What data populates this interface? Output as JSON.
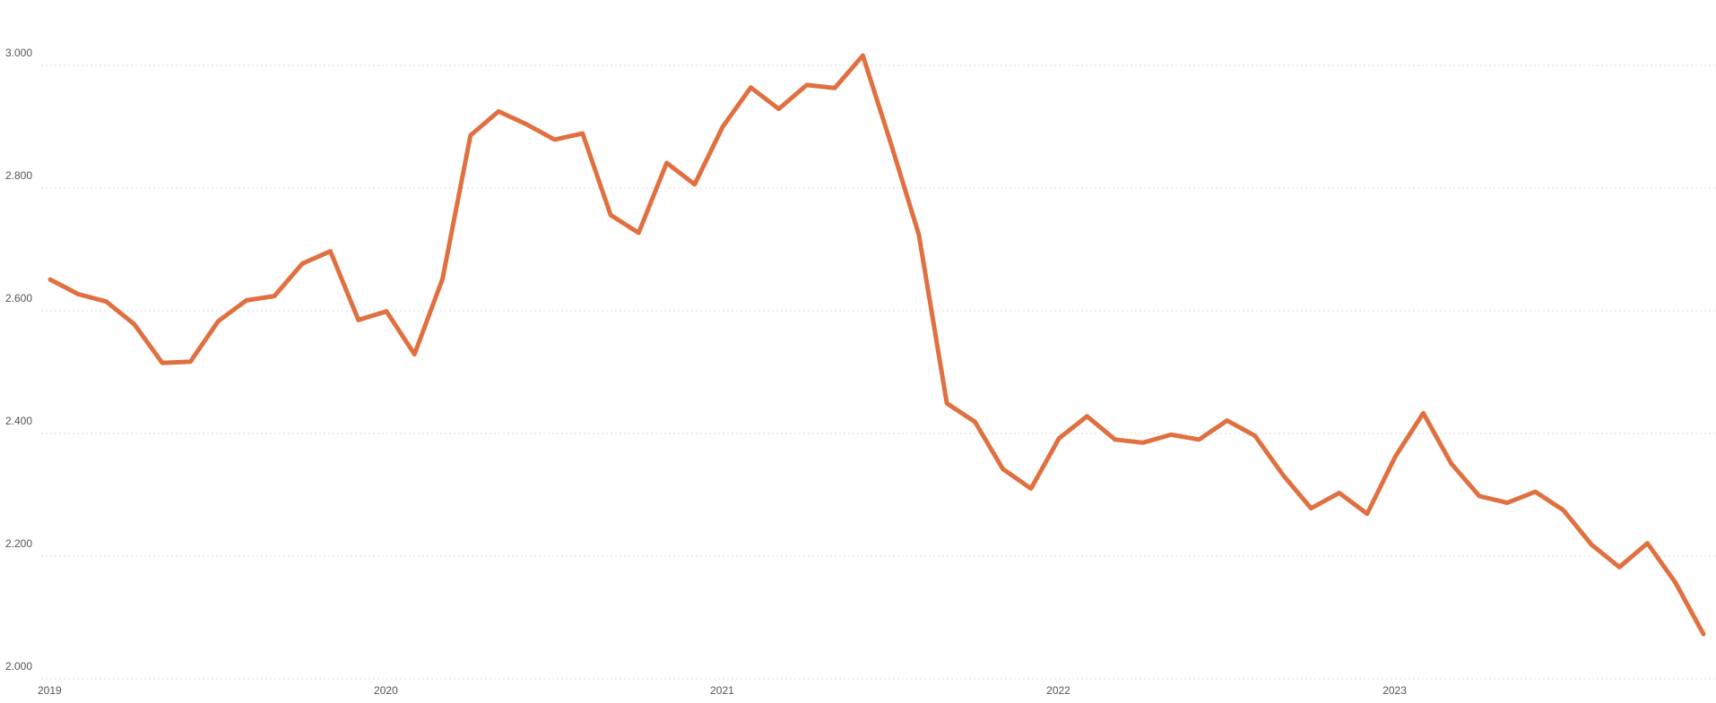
{
  "chart_data": {
    "type": "line",
    "categories": [
      "2019",
      null,
      null,
      null,
      null,
      null,
      null,
      null,
      null,
      null,
      null,
      null,
      "2020",
      null,
      null,
      null,
      null,
      null,
      null,
      null,
      null,
      null,
      null,
      null,
      "2021",
      null,
      null,
      null,
      null,
      null,
      null,
      null,
      null,
      null,
      null,
      null,
      "2022",
      null,
      null,
      null,
      null,
      null,
      null,
      null,
      null,
      null,
      null,
      null,
      "2023",
      null,
      null,
      null,
      null,
      null,
      null,
      null,
      null,
      null,
      null,
      null
    ],
    "values": [
      2651,
      2627,
      2615,
      2578,
      2515,
      2517,
      2583,
      2617,
      2624,
      2677,
      2697,
      2585,
      2599,
      2529,
      2652,
      2886,
      2925,
      2904,
      2879,
      2889,
      2756,
      2727,
      2841,
      2806,
      2900,
      2964,
      2929,
      2968,
      2963,
      3016,
      2873,
      2724,
      2449,
      2419,
      2342,
      2310,
      2392,
      2428,
      2390,
      2385,
      2398,
      2390,
      2421,
      2396,
      2332,
      2278,
      2303,
      2269,
      2362,
      2433,
      2351,
      2298,
      2287,
      2305,
      2275,
      2219,
      2182,
      2221,
      2157,
      2073
    ],
    "color": "#e07040",
    "ylim": [
      2000,
      3000
    ],
    "yticks": [
      {
        "value": 2000,
        "label": "2.000"
      },
      {
        "value": 2200,
        "label": "2.200"
      },
      {
        "value": 2400,
        "label": "2.400"
      },
      {
        "value": 2600,
        "label": "2.600"
      },
      {
        "value": 2800,
        "label": "2.800"
      },
      {
        "value": 3000,
        "label": "3.000"
      }
    ],
    "grid": true
  }
}
